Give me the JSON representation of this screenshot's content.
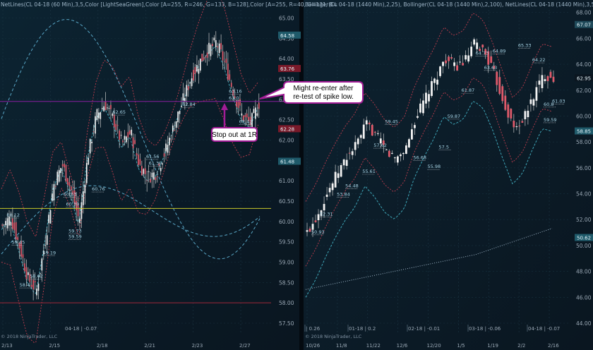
{
  "window": {
    "left_header": "NetLines(CL 04-18 (60 Min),3,5,Color [LightSeaGreen],Color [A=255, R=246, G=133, B=128],Color [A=255, R=40, G=131, B=",
    "right_header": "Bollinger(CL 04-18 (1440 Min),2,25), Bollinger(CL 04-18 (1440 Min),2,100), NetLines(CL 04-18 (1440 Min),3,5,Color [Lig",
    "copyright_left": "© 2018 NinjaTrader, LLC",
    "copyright_right": "© 2018 NinjaTrader, LLC",
    "left_panel_note": "04-18 | -0.07"
  },
  "annotations": {
    "reenter": "Might re-enter after re-test of spike low.",
    "reenter_lines": [
      "Might re-enter after",
      "re-test of spike low."
    ],
    "stop": "Stop out at 1R"
  },
  "chart_data": [
    {
      "type": "candlestick",
      "title": "CL 04-18 (60 Min)",
      "x_tick_labels": [
        "2/13",
        "2/15",
        "2/18",
        "2/21",
        "2/23",
        "2/27"
      ],
      "y_tick_labels": [
        "65.00",
        "64.50",
        "64.00",
        "63.50",
        "63.00",
        "62.50",
        "62.00",
        "61.50",
        "61.00",
        "60.50",
        "60.00",
        "59.50",
        "59.00",
        "58.50",
        "58.00",
        "57.50"
      ],
      "ylim": [
        57.5,
        65.2
      ],
      "price_boxes": [
        {
          "value": "64.58",
          "color": "#1f5a6a"
        },
        {
          "value": "63.76",
          "color": "#7a1a2a"
        },
        {
          "value": "62.28",
          "color": "#7a1a2a"
        },
        {
          "value": "61.48",
          "color": "#1f5a6a"
        }
      ],
      "horizontal_lines": [
        {
          "value": 62.95,
          "color": "#8a1fa0"
        },
        {
          "value": 60.32,
          "color": "#c9c928"
        },
        {
          "value": 58.0,
          "color": "#a0283a"
        }
      ],
      "point_labels": [
        {
          "x": 2,
          "y": 60.12,
          "label": "60.12"
        },
        {
          "x": 4,
          "y": 59.45,
          "label": "59.45"
        },
        {
          "x": 16,
          "y": 59.19,
          "label": "59.19"
        },
        {
          "x": 24,
          "y": 60.63,
          "label": "60.63"
        },
        {
          "x": 25,
          "y": 60.39,
          "label": "60.39"
        },
        {
          "x": 26,
          "y": 59.73,
          "label": "59.73"
        },
        {
          "x": 26,
          "y": 59.59,
          "label": "59.59"
        },
        {
          "x": 35,
          "y": 60.76,
          "label": "60.76"
        },
        {
          "x": 43,
          "y": 62.65,
          "label": "62.65"
        },
        {
          "x": 56,
          "y": 61.56,
          "label": "61.56"
        },
        {
          "x": 57,
          "y": 61.39,
          "label": "61.39"
        },
        {
          "x": 70,
          "y": 62.84,
          "label": "62.84"
        },
        {
          "x": 88,
          "y": 63.16,
          "label": "63.16"
        },
        {
          "x": 92,
          "y": 62.42,
          "label": "62.42"
        },
        {
          "x": 88,
          "y": 63.0,
          "label": "63.0"
        },
        {
          "x": 11,
          "y": 58.62,
          "label": "58.62"
        },
        {
          "x": 7,
          "y": 58.4,
          "label": "58.4"
        }
      ]
    },
    {
      "type": "candlestick",
      "title": "CL 04-18 (1440 Min)",
      "x_tick_labels": [
        "10/26",
        "11/8",
        "11/22",
        "12/6",
        "12/20",
        "1/5",
        "1/19",
        "2/2",
        "2/16"
      ],
      "y_tick_labels": [
        "68.00",
        "66.00",
        "64.00",
        "62.00",
        "60.00",
        "58.00",
        "56.00",
        "54.00",
        "52.00",
        "50.00",
        "48.00",
        "46.00",
        "44.00"
      ],
      "ylim": [
        44.0,
        68.2
      ],
      "price_boxes": [
        {
          "value": "67.07",
          "color": "#1f4a5a"
        },
        {
          "value": "62.95",
          "color": "#0b1620"
        },
        {
          "value": "58.85",
          "color": "#1f5a6a"
        },
        {
          "value": "50.62",
          "color": "#1f5a6a"
        }
      ],
      "bottom_labels": [
        "| 0.26",
        "01-18 | 0.2",
        "02-18 | -0.01",
        "03-18 | -0.06",
        "04-18 | -0.07"
      ],
      "point_labels": [
        {
          "x": 2,
          "y": 50.93,
          "label": "50.93"
        },
        {
          "x": 5,
          "y": 52.31,
          "label": "52.31"
        },
        {
          "x": 11,
          "y": 53.84,
          "label": "53.84"
        },
        {
          "x": 14,
          "y": 54.48,
          "label": "54.48"
        },
        {
          "x": 20,
          "y": 55.61,
          "label": "55.61"
        },
        {
          "x": 24,
          "y": 57.62,
          "label": "57.62"
        },
        {
          "x": 28,
          "y": 59.45,
          "label": "59.45"
        },
        {
          "x": 38,
          "y": 56.68,
          "label": "56.68"
        },
        {
          "x": 43,
          "y": 55.98,
          "label": "55.98"
        },
        {
          "x": 47,
          "y": 57.5,
          "label": "57.5"
        },
        {
          "x": 50,
          "y": 59.87,
          "label": "59.87"
        },
        {
          "x": 55,
          "y": 61.87,
          "label": "61.87"
        },
        {
          "x": 60,
          "y": 64.73,
          "label": "64.73"
        },
        {
          "x": 63,
          "y": 63.63,
          "label": "63.63"
        },
        {
          "x": 66,
          "y": 64.89,
          "label": "64.89"
        },
        {
          "x": 75,
          "y": 65.33,
          "label": "65.33"
        },
        {
          "x": 80,
          "y": 64.22,
          "label": "64.22"
        },
        {
          "x": 84,
          "y": 60.8,
          "label": "60.8"
        },
        {
          "x": 84,
          "y": 59.59,
          "label": "59.59"
        },
        {
          "x": 87,
          "y": 61.03,
          "label": "61.03"
        }
      ]
    }
  ]
}
